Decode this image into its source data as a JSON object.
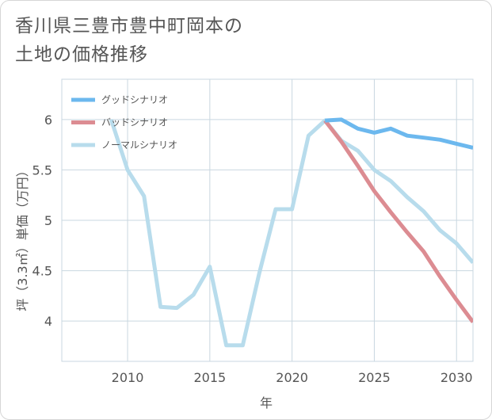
{
  "title_line1": "香川県三豊市豊中町岡本の",
  "title_line2": "土地の価格推移",
  "chart_data": {
    "type": "line",
    "xlabel": "年",
    "ylabel": "坪（3.3㎡）単価（万円）",
    "xlim": [
      2006,
      2031
    ],
    "ylim": [
      3.6,
      6.4
    ],
    "xticks": [
      2010,
      2015,
      2020,
      2025,
      2030
    ],
    "xtick_labels": [
      "2010",
      "2015",
      "2020",
      "2025",
      "2030"
    ],
    "yticks": [
      4,
      4.5,
      5,
      5.5,
      6
    ],
    "ytick_labels": [
      "4",
      "4.5",
      "5",
      "5.5",
      "6"
    ],
    "grid": true,
    "legend_position": "top-left",
    "series": [
      {
        "name": "グッドシナリオ",
        "color": "#6cb8ee",
        "x": [
          2022,
          2023,
          2024,
          2025,
          2026,
          2027,
          2028,
          2029,
          2030,
          2031
        ],
        "y": [
          5.99,
          6.0,
          5.91,
          5.87,
          5.91,
          5.84,
          5.82,
          5.8,
          5.76,
          5.72
        ]
      },
      {
        "name": "バッドシナリオ",
        "color": "#dc8c92",
        "x": [
          2022,
          2023,
          2024,
          2025,
          2026,
          2027,
          2028,
          2029,
          2030,
          2031
        ],
        "y": [
          5.99,
          5.78,
          5.54,
          5.29,
          5.08,
          4.88,
          4.69,
          4.44,
          4.21,
          3.99
        ]
      },
      {
        "name": "ノーマルシナリオ",
        "color": "#b8dcec",
        "x": [
          2009,
          2010,
          2011,
          2012,
          2013,
          2014,
          2015,
          2016,
          2017,
          2018,
          2019,
          2020,
          2021,
          2022,
          2023,
          2024,
          2025,
          2026,
          2027,
          2028,
          2029,
          2030,
          2031
        ],
        "y": [
          6.0,
          5.5,
          5.24,
          4.14,
          4.13,
          4.26,
          4.54,
          3.76,
          3.76,
          4.47,
          5.11,
          5.11,
          5.84,
          5.99,
          5.79,
          5.69,
          5.5,
          5.39,
          5.23,
          5.09,
          4.9,
          4.77,
          4.58
        ]
      }
    ]
  }
}
